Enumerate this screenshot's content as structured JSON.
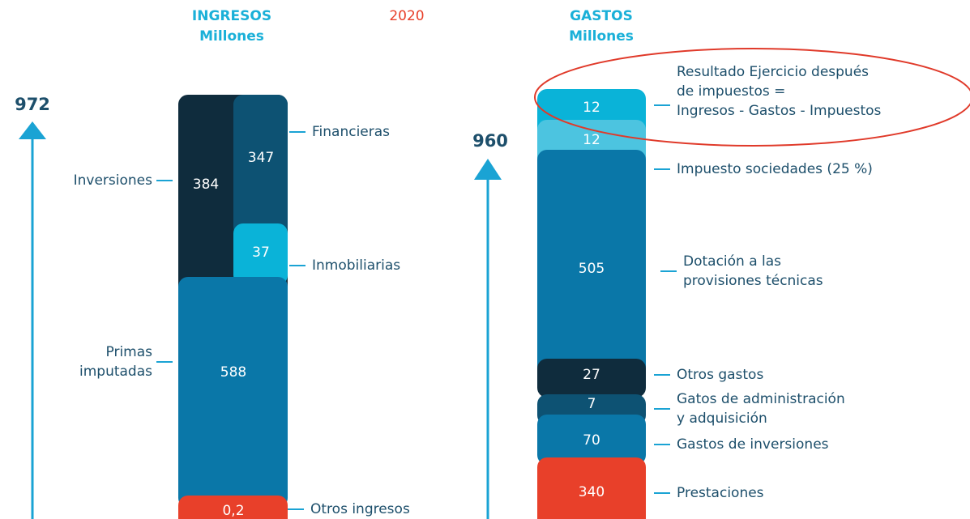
{
  "header": {
    "ingresos_title": "INGRESOS",
    "ingresos_unit": "Millones",
    "year": "2020",
    "gastos_title": "GASTOS",
    "gastos_unit": "Millones"
  },
  "ingresos": {
    "total": 972,
    "segments": [
      {
        "value": 384,
        "label": [
          "Inversiones"
        ]
      },
      {
        "value": 347,
        "label": [
          "Financieras"
        ]
      },
      {
        "value": 37,
        "label": [
          "Inmobiliarias"
        ]
      },
      {
        "value": 588,
        "label": [
          "Primas",
          "imputadas"
        ]
      },
      {
        "value": "0,2",
        "label": [
          "Otros ingresos"
        ]
      }
    ]
  },
  "gastos": {
    "total": 960,
    "segments": [
      {
        "value": 12,
        "label": [
          "Resultado Ejercicio después",
          "de impuestos =",
          "Ingresos - Gastos - Impuestos"
        ]
      },
      {
        "value": 12,
        "label": [
          "Impuesto sociedades (25 %)"
        ]
      },
      {
        "value": 505,
        "label": [
          "Dotación a las",
          "provisiones técnicas"
        ]
      },
      {
        "value": 27,
        "label": [
          "Otros gastos"
        ]
      },
      {
        "value": 7,
        "label": [
          "Gatos de administración",
          "y adquisición"
        ]
      },
      {
        "value": 70,
        "label": [
          "Gastos de inversiones"
        ]
      },
      {
        "value": 340,
        "label": [
          "Prestaciones"
        ]
      }
    ]
  }
}
